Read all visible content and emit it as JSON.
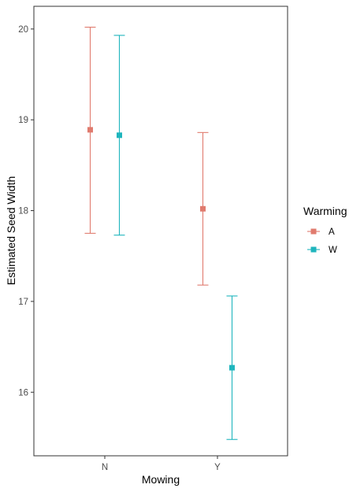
{
  "chart_data": {
    "type": "scatter",
    "categories": [
      "N",
      "Y"
    ],
    "xlabel": "Mowing",
    "ylabel": "Estimated Seed Width",
    "ylim": [
      15.3,
      20.25
    ],
    "yticks": [
      16,
      17,
      18,
      19,
      20
    ],
    "grid": false,
    "legend": {
      "title": "Warming",
      "position": "right"
    },
    "series": [
      {
        "name": "A",
        "color": "#E07B6E",
        "points": [
          {
            "x": "N",
            "y": 18.89,
            "lower": 17.75,
            "upper": 20.02
          },
          {
            "x": "Y",
            "y": 18.02,
            "lower": 17.18,
            "upper": 18.86
          }
        ]
      },
      {
        "name": "W",
        "color": "#1FB5BD",
        "points": [
          {
            "x": "N",
            "y": 18.83,
            "lower": 17.73,
            "upper": 19.93
          },
          {
            "x": "Y",
            "y": 16.27,
            "lower": 15.48,
            "upper": 17.06
          }
        ]
      }
    ]
  }
}
